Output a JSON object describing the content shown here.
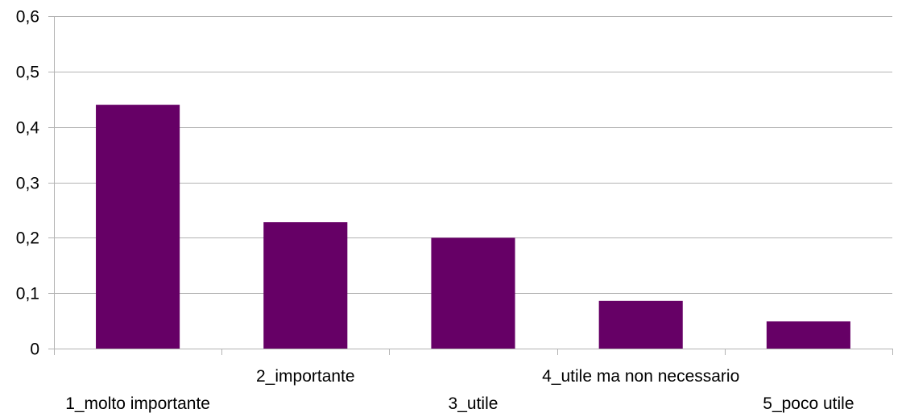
{
  "chart_data": {
    "type": "bar",
    "title": "",
    "xlabel": "",
    "ylabel": "",
    "categories": [
      "1_molto importante",
      "2_importante",
      "3_utile",
      "4_utile ma non necessario",
      "5_poco utile"
    ],
    "values": [
      0.44,
      0.228,
      0.2,
      0.086,
      0.049
    ],
    "ylim": [
      0,
      0.6
    ],
    "yticks": [
      0,
      0.1,
      0.2,
      0.3,
      0.4,
      0.5,
      0.6
    ],
    "ytick_labels": [
      "0",
      "0,1",
      "0,2",
      "0,3",
      "0,4",
      "0,5",
      "0,6"
    ],
    "grid": true,
    "legend": "none",
    "bar_color": "#660066"
  }
}
